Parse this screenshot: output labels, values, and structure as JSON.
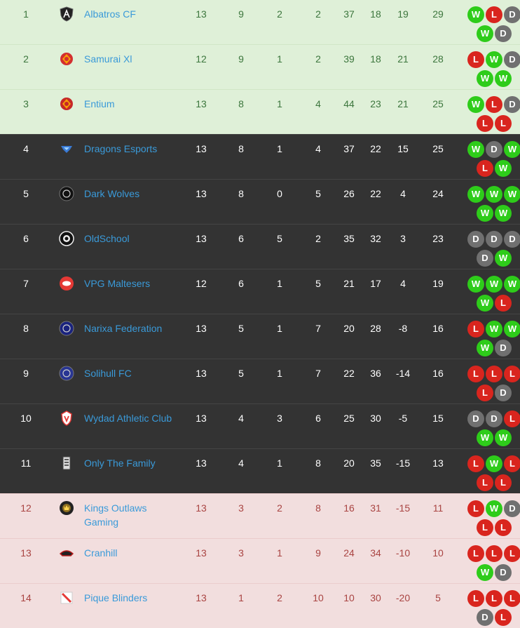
{
  "colors": {
    "win": "#2ecc1a",
    "loss": "#d9251e",
    "draw": "#707070",
    "promotion_bg": "#dff0d8",
    "relegation_bg": "#f2dede",
    "mid_bg": "#333333",
    "link": "#3a9ad9"
  },
  "teams": [
    {
      "pos": "1",
      "zone": "promo",
      "name": "Albatros CF",
      "crest": "shield-A-icon",
      "crest_color": "#222222",
      "p": "13",
      "w": "9",
      "d": "2",
      "l": "2",
      "f": "37",
      "a": "18",
      "gd": "19",
      "pts": "29",
      "form": [
        "W",
        "L",
        "D",
        "W",
        "D"
      ]
    },
    {
      "pos": "2",
      "zone": "promo",
      "name": "Samurai Xl",
      "crest": "samurai-crest-icon",
      "crest_color": "#d32f2f",
      "p": "12",
      "w": "9",
      "d": "1",
      "l": "2",
      "f": "39",
      "a": "18",
      "gd": "21",
      "pts": "28",
      "form": [
        "L",
        "W",
        "D",
        "W",
        "W"
      ]
    },
    {
      "pos": "3",
      "zone": "promo",
      "name": "Entium",
      "crest": "entium-crest-icon",
      "crest_color": "#c62828",
      "p": "13",
      "w": "8",
      "d": "1",
      "l": "4",
      "f": "44",
      "a": "23",
      "gd": "21",
      "pts": "25",
      "form": [
        "W",
        "L",
        "D",
        "L",
        "L"
      ]
    },
    {
      "pos": "4",
      "zone": "mid",
      "name": "Dragons Esports",
      "crest": "dragon-crest-icon",
      "crest_color": "#3a7bd5",
      "p": "13",
      "w": "8",
      "d": "1",
      "l": "4",
      "f": "37",
      "a": "22",
      "gd": "15",
      "pts": "25",
      "form": [
        "W",
        "D",
        "W",
        "L",
        "W"
      ]
    },
    {
      "pos": "5",
      "zone": "mid",
      "name": "Dark Wolves",
      "crest": "wolf-crest-icon",
      "crest_color": "#111111",
      "p": "13",
      "w": "8",
      "d": "0",
      "l": "5",
      "f": "26",
      "a": "22",
      "gd": "4",
      "pts": "24",
      "form": [
        "W",
        "W",
        "W",
        "W",
        "W"
      ]
    },
    {
      "pos": "6",
      "zone": "mid",
      "name": "OldSchool",
      "crest": "oldschool-crest-icon",
      "crest_color": "#eeeeee",
      "p": "13",
      "w": "6",
      "d": "5",
      "l": "2",
      "f": "35",
      "a": "32",
      "gd": "3",
      "pts": "23",
      "form": [
        "D",
        "D",
        "D",
        "D",
        "W"
      ]
    },
    {
      "pos": "7",
      "zone": "mid",
      "name": "VPG Maltesers",
      "crest": "maltesers-crest-icon",
      "crest_color": "#e53935",
      "p": "12",
      "w": "6",
      "d": "1",
      "l": "5",
      "f": "21",
      "a": "17",
      "gd": "4",
      "pts": "19",
      "form": [
        "W",
        "W",
        "W",
        "W",
        "L"
      ]
    },
    {
      "pos": "8",
      "zone": "mid",
      "name": "Narixa Federation",
      "crest": "narixa-crest-icon",
      "crest_color": "#1a237e",
      "p": "13",
      "w": "5",
      "d": "1",
      "l": "7",
      "f": "20",
      "a": "28",
      "gd": "-8",
      "pts": "16",
      "form": [
        "L",
        "W",
        "W",
        "W",
        "D"
      ]
    },
    {
      "pos": "9",
      "zone": "mid",
      "name": "Solihull FC",
      "crest": "solihull-crest-icon",
      "crest_color": "#283593",
      "p": "13",
      "w": "5",
      "d": "1",
      "l": "7",
      "f": "22",
      "a": "36",
      "gd": "-14",
      "pts": "16",
      "form": [
        "L",
        "L",
        "L",
        "L",
        "D"
      ]
    },
    {
      "pos": "10",
      "zone": "mid",
      "name": "Wydad Athletic Club",
      "crest": "wydad-crest-icon",
      "crest_color": "#e53935",
      "p": "13",
      "w": "4",
      "d": "3",
      "l": "6",
      "f": "25",
      "a": "30",
      "gd": "-5",
      "pts": "15",
      "form": [
        "D",
        "D",
        "L",
        "W",
        "W"
      ]
    },
    {
      "pos": "11",
      "zone": "mid",
      "name": "Only The Family",
      "crest": "otf-crest-icon",
      "crest_color": "#dddddd",
      "p": "13",
      "w": "4",
      "d": "1",
      "l": "8",
      "f": "20",
      "a": "35",
      "gd": "-15",
      "pts": "13",
      "form": [
        "L",
        "W",
        "L",
        "L",
        "L"
      ]
    },
    {
      "pos": "12",
      "zone": "releg",
      "name": "Kings Outlaws Gaming",
      "crest": "kings-outlaws-crest-icon",
      "crest_color": "#8d6e1f",
      "p": "13",
      "w": "3",
      "d": "2",
      "l": "8",
      "f": "16",
      "a": "31",
      "gd": "-15",
      "pts": "11",
      "form": [
        "L",
        "W",
        "D",
        "L",
        "L"
      ]
    },
    {
      "pos": "13",
      "zone": "releg",
      "name": "Cranhill",
      "crest": "cranhill-crest-icon",
      "crest_color": "#b71c1c",
      "p": "13",
      "w": "3",
      "d": "1",
      "l": "9",
      "f": "24",
      "a": "34",
      "gd": "-10",
      "pts": "10",
      "form": [
        "L",
        "L",
        "L",
        "W",
        "D"
      ]
    },
    {
      "pos": "14",
      "zone": "releg",
      "name": "Pique Blinders",
      "crest": "pique-blinders-crest-icon",
      "crest_color": "#e53935",
      "p": "13",
      "w": "1",
      "d": "2",
      "l": "10",
      "f": "10",
      "a": "30",
      "gd": "-20",
      "pts": "5",
      "form": [
        "L",
        "L",
        "L",
        "D",
        "L"
      ]
    }
  ]
}
